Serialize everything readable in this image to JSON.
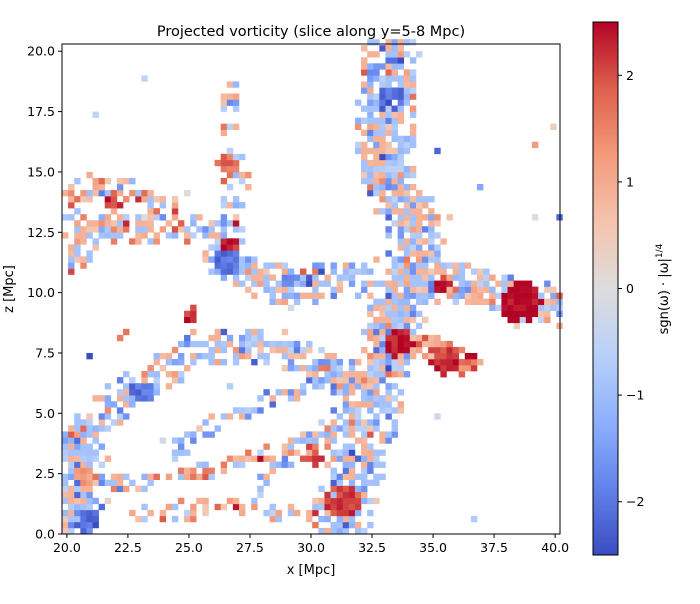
{
  "chart_data": {
    "type": "heatmap",
    "title": "Projected vorticity (slice along y=5-8 Mpc)",
    "xlabel": "x [Mpc]",
    "ylabel": "z [Mpc]",
    "xlim": [
      19.8,
      40.2
    ],
    "ylim": [
      0.0,
      20.3
    ],
    "xticks": [
      20.0,
      22.5,
      25.0,
      27.5,
      30.0,
      32.5,
      35.0,
      37.5,
      40.0
    ],
    "xtick_labels": [
      "20.0",
      "22.5",
      "25.0",
      "27.5",
      "30.0",
      "32.5",
      "35.0",
      "37.5",
      "40.0"
    ],
    "yticks": [
      0.0,
      2.5,
      5.0,
      7.5,
      10.0,
      12.5,
      15.0,
      17.5,
      20.0
    ],
    "ytick_labels": [
      "0.0",
      "2.5",
      "5.0",
      "7.5",
      "10.0",
      "12.5",
      "15.0",
      "17.5",
      "20.0"
    ],
    "colormap": "coolwarm",
    "colorbar": {
      "label": "sgn(ω) · |ω|^{1/4}",
      "label_main": "sgn(ω) · |ω|",
      "label_exponent": "1/4",
      "range": [
        -2.5,
        2.5
      ],
      "ticks": [
        -2,
        -1,
        0,
        1,
        2
      ],
      "tick_labels": [
        "−2",
        "−1",
        "0",
        "1",
        "2"
      ]
    },
    "grid": false,
    "cell_size_mpc": 0.25,
    "filaments": [
      {
        "points": [
          [
            33.3,
            20.0
          ],
          [
            33.0,
            18.0
          ],
          [
            33.0,
            16.0
          ],
          [
            33.4,
            14.5
          ],
          [
            34.3,
            12.5
          ],
          [
            34.3,
            10.8
          ],
          [
            33.5,
            9.0
          ],
          [
            33.0,
            7.5
          ],
          [
            32.6,
            6.0
          ],
          [
            32.4,
            4.5
          ],
          [
            31.9,
            3.0
          ],
          [
            31.5,
            1.5
          ],
          [
            31.2,
            0.3
          ]
        ],
        "width": 1.2,
        "bias": -0.4,
        "density": 0.85
      },
      {
        "points": [
          [
            34.2,
            10.6
          ],
          [
            36.0,
            10.4
          ],
          [
            37.5,
            9.9
          ],
          [
            39.0,
            9.6
          ],
          [
            40.1,
            9.4
          ]
        ],
        "width": 0.9,
        "bias": -0.2,
        "density": 0.8
      },
      {
        "points": [
          [
            33.0,
            8.2
          ],
          [
            34.7,
            7.8
          ],
          [
            35.5,
            7.4
          ],
          [
            36.4,
            7.0
          ]
        ],
        "width": 0.6,
        "bias": 1.2,
        "density": 0.85
      },
      {
        "points": [
          [
            26.3,
            11.5
          ],
          [
            28.0,
            10.5
          ],
          [
            29.5,
            10.2
          ],
          [
            31.0,
            10.5
          ],
          [
            32.5,
            10.6
          ]
        ],
        "width": 0.8,
        "bias": -0.6,
        "density": 0.8
      },
      {
        "points": [
          [
            19.8,
            13.0
          ],
          [
            21.5,
            12.8
          ],
          [
            23.0,
            12.6
          ],
          [
            25.0,
            12.5
          ],
          [
            26.5,
            12.2
          ]
        ],
        "width": 0.7,
        "bias": 0.0,
        "density": 0.6
      },
      {
        "points": [
          [
            20.3,
            14.3
          ],
          [
            21.5,
            14.3
          ],
          [
            23.0,
            14.0
          ],
          [
            24.0,
            13.5
          ]
        ],
        "width": 0.6,
        "bias": 0.3,
        "density": 0.6
      },
      {
        "points": [
          [
            26.5,
            12.2
          ],
          [
            26.7,
            13.3
          ],
          [
            26.9,
            14.5
          ],
          [
            26.8,
            15.5
          ]
        ],
        "width": 0.6,
        "bias": 0.0,
        "density": 0.6
      },
      {
        "points": [
          [
            20.2,
            1.5
          ],
          [
            20.5,
            3.0
          ],
          [
            21.0,
            4.5
          ],
          [
            22.5,
            5.8
          ],
          [
            23.8,
            6.5
          ],
          [
            25.0,
            7.6
          ],
          [
            26.5,
            7.8
          ],
          [
            28.5,
            7.7
          ],
          [
            30.0,
            7.0
          ],
          [
            31.5,
            6.3
          ]
        ],
        "width": 0.8,
        "bias": -0.4,
        "density": 0.7
      },
      {
        "points": [
          [
            24.5,
            3.5
          ],
          [
            26.5,
            4.8
          ],
          [
            28.5,
            5.6
          ],
          [
            30.5,
            6.2
          ],
          [
            32.4,
            6.3
          ]
        ],
        "width": 0.4,
        "bias": -0.5,
        "density": 0.6
      },
      {
        "points": [
          [
            28.0,
            2.0
          ],
          [
            29.0,
            3.3
          ],
          [
            30.5,
            4.3
          ],
          [
            32.0,
            5.5
          ]
        ],
        "width": 0.4,
        "bias": -0.2,
        "density": 0.55
      },
      {
        "points": [
          [
            22.0,
            2.0
          ],
          [
            24.0,
            2.4
          ],
          [
            26.0,
            2.6
          ],
          [
            27.6,
            3.3
          ],
          [
            29.5,
            3.7
          ],
          [
            31.2,
            4.0
          ]
        ],
        "width": 0.4,
        "bias": 0.4,
        "density": 0.5
      },
      {
        "points": [
          [
            23.0,
            0.8
          ],
          [
            25.5,
            1.0
          ],
          [
            27.5,
            0.9
          ],
          [
            29.5,
            1.0
          ],
          [
            31.0,
            0.9
          ]
        ],
        "width": 0.5,
        "bias": 0.5,
        "density": 0.5
      },
      {
        "points": [
          [
            20.0,
            0.0
          ],
          [
            20.4,
            1.0
          ],
          [
            20.8,
            2.5
          ],
          [
            20.5,
            3.8
          ]
        ],
        "width": 1.0,
        "bias": -0.2,
        "density": 0.8
      },
      {
        "points": [
          [
            20.2,
            11.2
          ],
          [
            21.5,
            12.6
          ]
        ],
        "width": 0.5,
        "bias": 0.4,
        "density": 0.6
      },
      {
        "points": [
          [
            26.6,
            16.8
          ],
          [
            26.7,
            18.5
          ]
        ],
        "width": 0.4,
        "bias": 0.0,
        "density": 0.45
      }
    ],
    "blobs": [
      {
        "x": 38.6,
        "y": 9.6,
        "r": 0.85,
        "value": 2.5
      },
      {
        "x": 35.5,
        "y": 7.2,
        "r": 0.6,
        "value": 2.2
      },
      {
        "x": 33.6,
        "y": 7.9,
        "r": 0.6,
        "value": 2.4
      },
      {
        "x": 31.3,
        "y": 1.4,
        "r": 0.7,
        "value": 2.1
      },
      {
        "x": 30.0,
        "y": 3.2,
        "r": 0.45,
        "value": 2.0
      },
      {
        "x": 26.5,
        "y": 11.3,
        "r": 0.55,
        "value": -2.0
      },
      {
        "x": 23.1,
        "y": 5.9,
        "r": 0.5,
        "value": -2.0
      },
      {
        "x": 26.7,
        "y": 12.0,
        "r": 0.35,
        "value": 2.3
      },
      {
        "x": 26.6,
        "y": 15.3,
        "r": 0.45,
        "value": 1.8
      },
      {
        "x": 33.2,
        "y": 18.0,
        "r": 0.5,
        "value": -2.1
      },
      {
        "x": 35.4,
        "y": 10.3,
        "r": 0.35,
        "value": 2.4
      },
      {
        "x": 25.1,
        "y": 9.1,
        "r": 0.3,
        "value": 2.3
      },
      {
        "x": 21.9,
        "y": 13.7,
        "r": 0.3,
        "value": 2.2
      },
      {
        "x": 20.8,
        "y": 2.5,
        "r": 0.5,
        "value": 1.2
      },
      {
        "x": 20.8,
        "y": 0.6,
        "r": 0.5,
        "value": -2.1
      }
    ]
  }
}
